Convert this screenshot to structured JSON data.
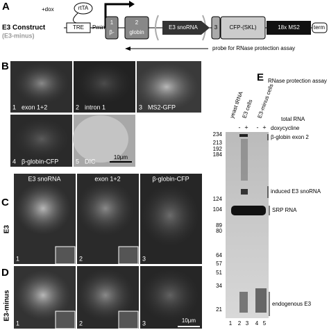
{
  "panel_a": {
    "letter": "A",
    "title": "E3 Construct",
    "subtitle": "(E3-minus)",
    "dox": "+dox",
    "activator": "rtTA",
    "elements": [
      "TRE",
      "Pmin",
      "1",
      "β-",
      "2",
      "globin",
      "E3 snoRNA",
      "3",
      "CFP-(SKL)",
      "18x MS2",
      "term"
    ],
    "probe": "probe for RNase protection assay"
  },
  "panel_b": {
    "letter": "B",
    "images": [
      {
        "number": 1,
        "label": "exon 1+2"
      },
      {
        "number": 2,
        "label": "intron 1"
      },
      {
        "number": 3,
        "label": "MS2-GFP"
      },
      {
        "number": 4,
        "label": "β-globin-CFP"
      },
      {
        "number": 5,
        "label": "DIC"
      }
    ],
    "scale_bar": "10μm"
  },
  "panel_c": {
    "letter": "C",
    "row_label": "E3",
    "columns": [
      "E3 snoRNA",
      "exon 1+2",
      "β-globin-CFP"
    ],
    "numbers": [
      1,
      2,
      3
    ]
  },
  "panel_d": {
    "letter": "D",
    "row_label": "E3-minus",
    "numbers": [
      1,
      2,
      3
    ],
    "scale_bar": "10μm"
  },
  "panel_e": {
    "letter": "E",
    "title": "RNase protection assay",
    "lanes": [
      "yeast tRNA",
      "E3 cells",
      "E3-minus cells"
    ],
    "total_rna": "total RNA",
    "dox_signs": [
      "-",
      "+",
      "-",
      "+"
    ],
    "doxycycline": "doxycycline",
    "markers": [
      234,
      213,
      192,
      184,
      124,
      104,
      89,
      80,
      64,
      57,
      51,
      34,
      21
    ],
    "bands": [
      "β-globin exon 2",
      "induced E3 snoRNA",
      "SRP RNA",
      "endogenous E3"
    ],
    "lane_numbers": [
      1,
      2,
      3,
      4,
      5
    ]
  }
}
